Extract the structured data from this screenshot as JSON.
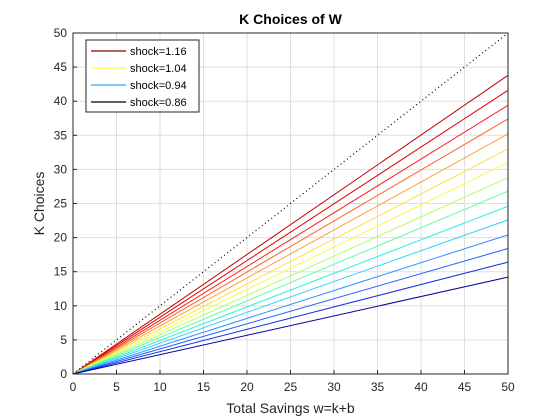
{
  "chart_data": {
    "type": "line",
    "title": "K Choices of W",
    "xlabel": "Total Savings w=k+b",
    "ylabel": "K Choices",
    "xlim": [
      0,
      50
    ],
    "ylim": [
      0,
      50
    ],
    "xticks": [
      0,
      5,
      10,
      15,
      20,
      25,
      30,
      35,
      40,
      45,
      50
    ],
    "yticks": [
      0,
      5,
      10,
      15,
      20,
      25,
      30,
      35,
      40,
      45,
      50
    ],
    "grid": true,
    "legend_position": "top-left",
    "legend": [
      {
        "label": "shock=1.16",
        "color": "#8b0000"
      },
      {
        "label": "shock=1.04",
        "color": "#ffff33"
      },
      {
        "label": "shock=0.94",
        "color": "#33aaff"
      },
      {
        "label": "shock=0.86",
        "color": "#000000"
      }
    ],
    "reference_line": {
      "x": [
        0,
        50
      ],
      "y": [
        0,
        50
      ],
      "style": "dotted",
      "color": "#000000"
    },
    "series": [
      {
        "x": [
          0,
          50
        ],
        "y": [
          0,
          43.8
        ],
        "color": "#c00000"
      },
      {
        "x": [
          0,
          50
        ],
        "y": [
          0,
          41.6
        ],
        "color": "#e00000"
      },
      {
        "x": [
          0,
          50
        ],
        "y": [
          0,
          39.4
        ],
        "color": "#ff2020"
      },
      {
        "x": [
          0,
          50
        ],
        "y": [
          0,
          37.4
        ],
        "color": "#ff6020"
      },
      {
        "x": [
          0,
          50
        ],
        "y": [
          0,
          35.2
        ],
        "color": "#ffa030"
      },
      {
        "x": [
          0,
          50
        ],
        "y": [
          0,
          33.0
        ],
        "color": "#ffe040"
      },
      {
        "x": [
          0,
          50
        ],
        "y": [
          0,
          31.0
        ],
        "color": "#f0ff40"
      },
      {
        "x": [
          0,
          50
        ],
        "y": [
          0,
          28.8
        ],
        "color": "#b0ff60"
      },
      {
        "x": [
          0,
          50
        ],
        "y": [
          0,
          26.8
        ],
        "color": "#60ffa0"
      },
      {
        "x": [
          0,
          50
        ],
        "y": [
          0,
          24.6
        ],
        "color": "#30f0e0"
      },
      {
        "x": [
          0,
          50
        ],
        "y": [
          0,
          22.6
        ],
        "color": "#30d0ff"
      },
      {
        "x": [
          0,
          50
        ],
        "y": [
          0,
          20.4
        ],
        "color": "#3090ff"
      },
      {
        "x": [
          0,
          50
        ],
        "y": [
          0,
          18.4
        ],
        "color": "#2060ff"
      },
      {
        "x": [
          0,
          50
        ],
        "y": [
          0,
          16.4
        ],
        "color": "#1030e0"
      },
      {
        "x": [
          0,
          50
        ],
        "y": [
          0,
          14.2
        ],
        "color": "#0000a0"
      }
    ]
  }
}
